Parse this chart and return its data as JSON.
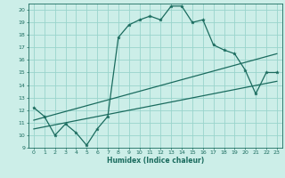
{
  "xlabel": "Humidex (Indice chaleur)",
  "bg_color": "#cceee8",
  "grid_color": "#99d4cc",
  "line_color": "#1a6b5e",
  "xlim": [
    -0.5,
    23.5
  ],
  "ylim": [
    9,
    20.5
  ],
  "xticks": [
    0,
    1,
    2,
    3,
    4,
    5,
    6,
    7,
    8,
    9,
    10,
    11,
    12,
    13,
    14,
    15,
    16,
    17,
    18,
    19,
    20,
    21,
    22,
    23
  ],
  "yticks": [
    9,
    10,
    11,
    12,
    13,
    14,
    15,
    16,
    17,
    18,
    19,
    20
  ],
  "main_x": [
    0,
    1,
    2,
    3,
    4,
    5,
    6,
    7,
    8,
    9,
    10,
    11,
    12,
    13,
    14,
    15,
    16,
    17,
    18,
    19,
    20,
    21,
    22,
    23
  ],
  "main_y": [
    12.2,
    11.5,
    10.0,
    10.9,
    10.2,
    9.2,
    10.5,
    11.5,
    17.8,
    18.8,
    19.2,
    19.5,
    19.2,
    20.3,
    20.3,
    19.0,
    19.2,
    17.2,
    16.8,
    16.5,
    15.2,
    13.3,
    15.0,
    15.0
  ],
  "trend1_start_y": 10.5,
  "trend1_end_y": 14.3,
  "trend2_start_y": 11.2,
  "trend2_end_y": 16.5
}
